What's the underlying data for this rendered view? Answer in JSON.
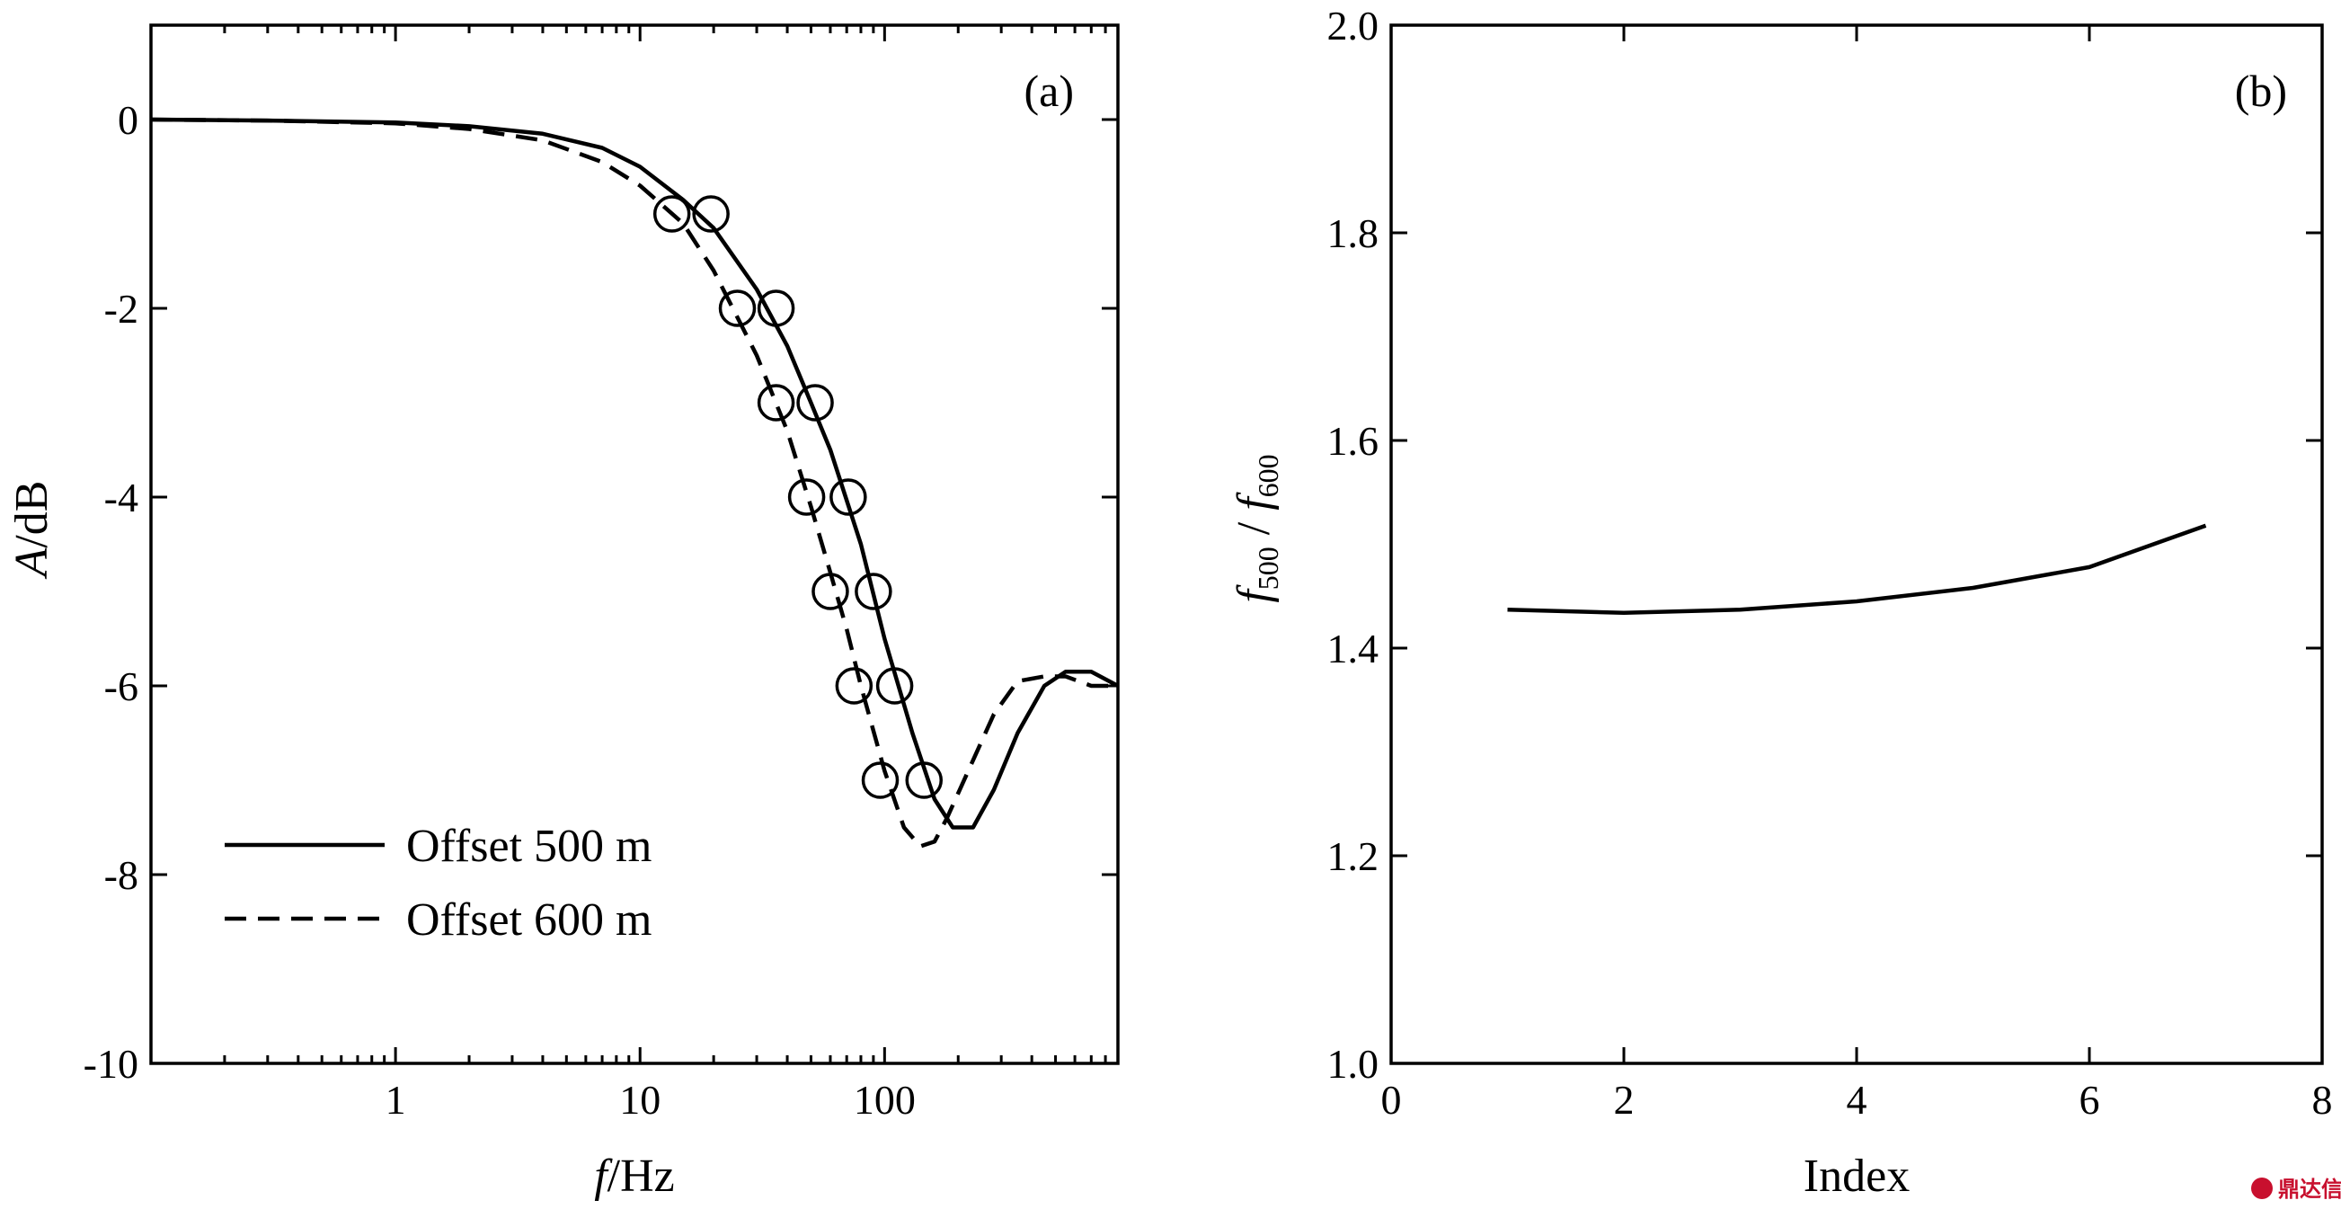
{
  "watermark": {
    "text": "鼎达信"
  },
  "chart_data": [
    {
      "panel_label": "(a)",
      "type": "line",
      "xscale": "log",
      "xlim": [
        0.1,
        900
      ],
      "ylim": [
        -10,
        1
      ],
      "xticks": [
        1,
        10,
        100
      ],
      "xtick_labels": [
        "1",
        "10",
        "100"
      ],
      "yticks": [
        0,
        -2,
        -4,
        -6,
        -8,
        -10
      ],
      "ytick_labels": [
        "0",
        "-2",
        "-4",
        "-6",
        "-8",
        "-10"
      ],
      "xlabel": {
        "italic": "f",
        "rest": "/Hz"
      },
      "ylabel": {
        "italic": "A",
        "rest": "/dB"
      },
      "legend_position": "bottom-left",
      "series": [
        {
          "name": "Offset 500 m",
          "style": "solid",
          "x": [
            0.1,
            0.3,
            1,
            2,
            4,
            7,
            10,
            15,
            20,
            30,
            40,
            50,
            60,
            80,
            100,
            130,
            160,
            190,
            230,
            280,
            350,
            450,
            550,
            700,
            900
          ],
          "y": [
            0,
            -0.01,
            -0.03,
            -0.07,
            -0.15,
            -0.3,
            -0.5,
            -0.85,
            -1.15,
            -1.8,
            -2.4,
            -3.0,
            -3.5,
            -4.5,
            -5.5,
            -6.5,
            -7.2,
            -7.5,
            -7.5,
            -7.1,
            -6.5,
            -6.0,
            -5.85,
            -5.85,
            -6.0
          ]
        },
        {
          "name": "Offset 600 m",
          "style": "dashed",
          "x": [
            0.1,
            0.3,
            1,
            2,
            4,
            7,
            10,
            15,
            20,
            30,
            40,
            50,
            60,
            70,
            80,
            100,
            120,
            140,
            160,
            180,
            220,
            280,
            350,
            450,
            550,
            700,
            900
          ],
          "y": [
            0,
            -0.01,
            -0.04,
            -0.1,
            -0.22,
            -0.45,
            -0.7,
            -1.1,
            -1.6,
            -2.5,
            -3.3,
            -4.1,
            -4.8,
            -5.4,
            -6.0,
            -6.9,
            -7.5,
            -7.7,
            -7.65,
            -7.4,
            -6.9,
            -6.3,
            -5.95,
            -5.9,
            -5.9,
            -6.0,
            -6.0
          ]
        }
      ],
      "markers": [
        {
          "x": 13.5,
          "y": -1
        },
        {
          "x": 19.5,
          "y": -1
        },
        {
          "x": 25,
          "y": -2
        },
        {
          "x": 36,
          "y": -2
        },
        {
          "x": 36,
          "y": -3
        },
        {
          "x": 52,
          "y": -3
        },
        {
          "x": 48,
          "y": -4
        },
        {
          "x": 71,
          "y": -4
        },
        {
          "x": 60,
          "y": -5
        },
        {
          "x": 90,
          "y": -5
        },
        {
          "x": 75,
          "y": -6
        },
        {
          "x": 110,
          "y": -6
        },
        {
          "x": 96,
          "y": -7
        },
        {
          "x": 145,
          "y": -7
        }
      ]
    },
    {
      "panel_label": "(b)",
      "type": "line",
      "xlim": [
        0,
        8
      ],
      "ylim": [
        1.0,
        2.0
      ],
      "xticks": [
        0,
        2,
        4,
        6,
        8
      ],
      "xtick_labels": [
        "0",
        "2",
        "4",
        "6",
        "8"
      ],
      "yticks": [
        1.0,
        1.2,
        1.4,
        1.6,
        1.8,
        2.0
      ],
      "ytick_labels": [
        "1.0",
        "1.2",
        "1.4",
        "1.6",
        "1.8",
        "2.0"
      ],
      "xlabel": "Index",
      "ylabel": {
        "f": "f",
        "sub1": "500",
        "sep": " / ",
        "f2": "f",
        "sub2": "600"
      },
      "series": [
        {
          "style": "solid",
          "x": [
            1,
            2,
            3,
            4,
            5,
            6,
            7
          ],
          "y": [
            1.437,
            1.434,
            1.437,
            1.445,
            1.458,
            1.478,
            1.518
          ]
        }
      ]
    }
  ]
}
